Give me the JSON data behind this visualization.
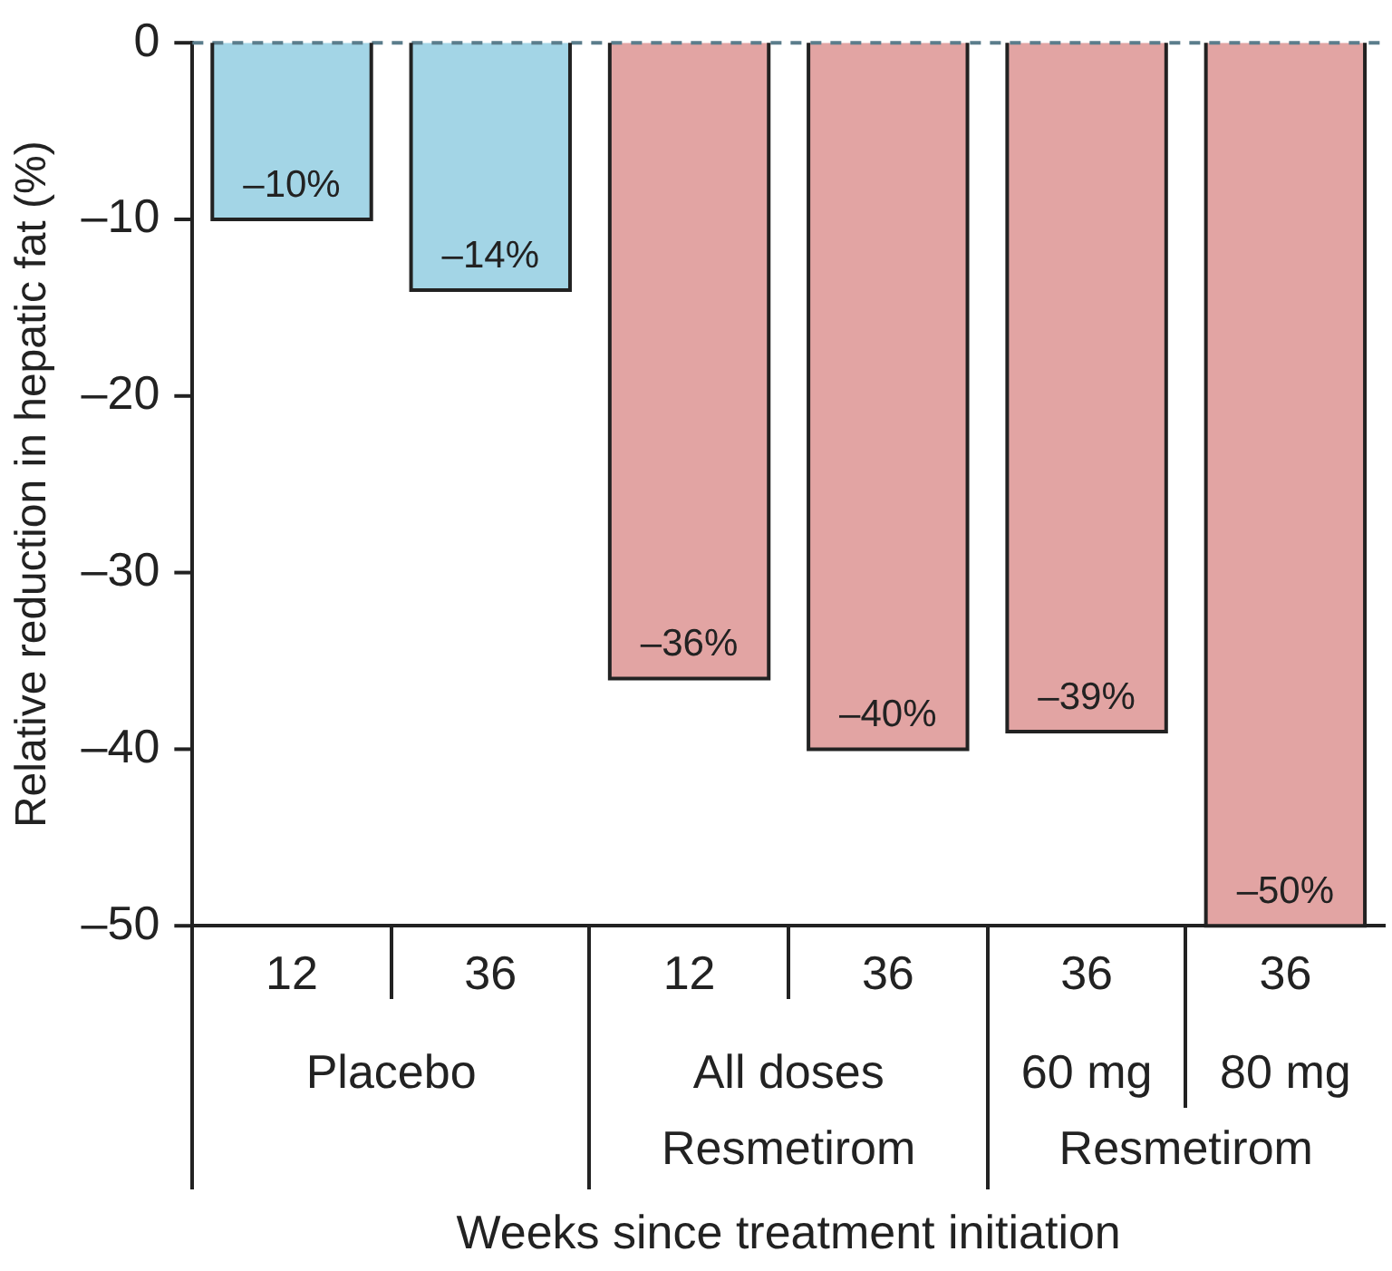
{
  "chart_data": {
    "type": "bar",
    "xlabel": "Weeks since treatment initiation",
    "ylabel": "Relative reduction in hepatic fat (%)",
    "categories": [
      "12",
      "36",
      "12",
      "36",
      "36",
      "36"
    ],
    "values": [
      -10,
      -14,
      -36,
      -40,
      -39,
      -50
    ],
    "colors": [
      "#a3d5e6",
      "#a3d5e6",
      "#e2a4a3",
      "#e2a4a3",
      "#e2a4a3",
      "#e2a4a3"
    ],
    "value_labels": [
      "–10%",
      "–14%",
      "–36%",
      "–40%",
      "–39%",
      "–50%"
    ],
    "ylim": [
      -50,
      0
    ],
    "yticks": [
      {
        "value": 0,
        "label": "0"
      },
      {
        "value": -10,
        "label": "–10"
      },
      {
        "value": -20,
        "label": "–20"
      },
      {
        "value": -30,
        "label": "–30"
      },
      {
        "value": -40,
        "label": "–40"
      },
      {
        "value": -50,
        "label": "–50"
      }
    ],
    "ref_lines": [
      {
        "axis": "y",
        "value": 0,
        "color": "#5b7d8c",
        "line_style": "dashed"
      }
    ],
    "annotations": [
      "Placebo",
      "All doses",
      "Resmetirom",
      "60 mg",
      "80 mg",
      "Resmetirom"
    ],
    "grid": false,
    "legend": false
  }
}
